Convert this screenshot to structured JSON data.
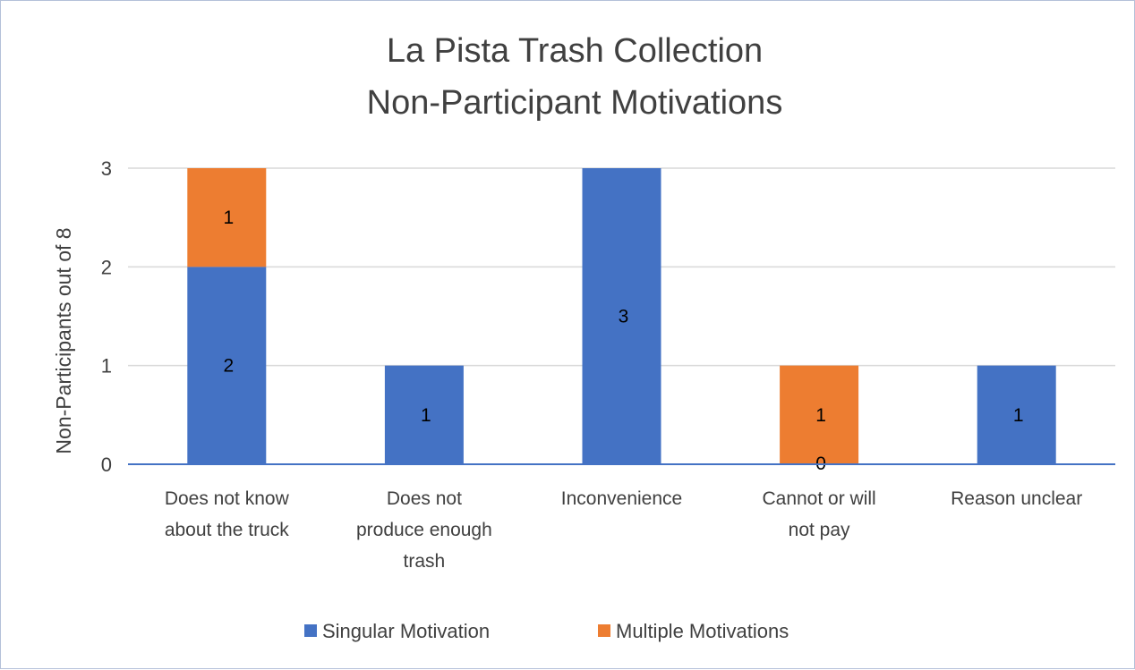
{
  "chart_data": {
    "type": "bar",
    "stacked": true,
    "title": [
      "La Pista Trash Collection",
      "Non-Participant Motivations"
    ],
    "xlabel": "",
    "ylabel": "Non-Participants out of 8",
    "ylim": [
      0,
      3
    ],
    "yticks": [
      "0",
      "1",
      "2",
      "3"
    ],
    "grid": true,
    "legend_position": "bottom",
    "categories": [
      [
        "Does not know",
        "about the truck"
      ],
      [
        "Does not",
        "produce enough",
        "trash"
      ],
      [
        "Inconvenience"
      ],
      [
        "Cannot or will",
        "not pay"
      ],
      [
        "Reason unclear"
      ]
    ],
    "series": [
      {
        "name": "Singular Motivation",
        "color": "#4472c4",
        "values": [
          2,
          1,
          3,
          0,
          1
        ],
        "labels": [
          "2",
          "1",
          "3",
          "0",
          "1"
        ]
      },
      {
        "name": "Multiple Motivations",
        "color": "#ed7d31",
        "values": [
          1,
          0,
          0,
          1,
          0
        ],
        "labels": [
          "1",
          "",
          "",
          "1",
          ""
        ]
      }
    ]
  }
}
